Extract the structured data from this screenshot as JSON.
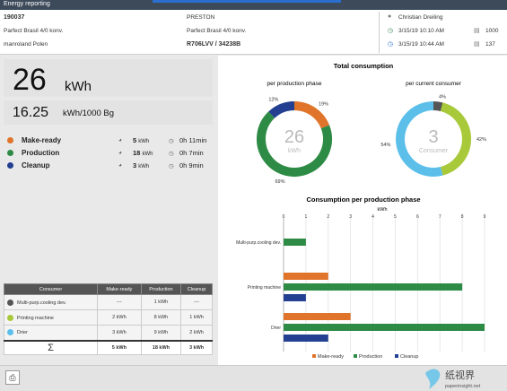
{
  "window": {
    "title": "Energy reporting"
  },
  "header": {
    "job_id": "190037",
    "customer": "PRESTON",
    "product_line1": "Parfect Brasil 4/0 konv.",
    "product_line2": "Parfect Brasil 4/0 konv.",
    "printer": "manroland Polen",
    "order": "R706LVV / 34238B",
    "operator": "Christian Dreiling",
    "start_time": "3/15/19 10:10 AM",
    "end_time": "3/15/19 10:44 AM",
    "count1": "1000",
    "count2": "137"
  },
  "totals": {
    "energy_value": "26",
    "energy_unit": "kWh",
    "specific_value": "16.25",
    "specific_unit": "kWh/1000 Bg"
  },
  "phases": [
    {
      "label": "Make-ready",
      "kwh": "5",
      "kwh_unit": "kWh",
      "time": "0h 11min",
      "color": "#e0742a"
    },
    {
      "label": "Production",
      "kwh": "18",
      "kwh_unit": "kWh",
      "time": "0h 7min",
      "color": "#2e8b45"
    },
    {
      "label": "Cleanup",
      "kwh": "3",
      "kwh_unit": "kWh",
      "time": "0h 9min",
      "color": "#233f92"
    }
  ],
  "consumer_table": {
    "headers": [
      "Consumer",
      "Make-ready",
      "Production",
      "Cleanup"
    ],
    "rows": [
      {
        "name": "Multi-purp.cooling dev.",
        "color": "#555555",
        "make_ready": "---",
        "production": "1 kWh",
        "cleanup": "---"
      },
      {
        "name": "Printing machine",
        "color": "#a8c93a",
        "make_ready": "2 kWh",
        "production": "8 kWh",
        "cleanup": "1 kWh"
      },
      {
        "name": "Drier",
        "color": "#5bbfea",
        "make_ready": "3 kWh",
        "production": "9 kWh",
        "cleanup": "2 kWh"
      }
    ],
    "total_symbol": "Σ",
    "totals": {
      "make_ready": "5 kWh",
      "production": "18 kWh",
      "cleanup": "3 kWh"
    }
  },
  "total_consumption": {
    "title": "Total consumption",
    "donut1": {
      "title": "per production phase",
      "center_value": "26",
      "center_unit": "kWh",
      "slices": [
        {
          "label": "19%",
          "value": 19,
          "color": "#e0742a"
        },
        {
          "label": "69%",
          "value": 69,
          "color": "#2e8b45"
        },
        {
          "label": "12%",
          "value": 12,
          "color": "#233f92"
        }
      ]
    },
    "donut2": {
      "title": "per current consumer",
      "center_value": "3",
      "center_unit": "Consumer",
      "slices": [
        {
          "label": "4%",
          "value": 4,
          "color": "#555555"
        },
        {
          "label": "42%",
          "value": 42,
          "color": "#a8c93a"
        },
        {
          "label": "54%",
          "value": 54,
          "color": "#5bbfea"
        }
      ]
    }
  },
  "chart_data": {
    "type": "bar",
    "title": "Consumption per production phase",
    "xlabel": "kWh",
    "xlim": [
      0,
      9
    ],
    "ticks": [
      "0",
      "1",
      "2",
      "3",
      "4",
      "5",
      "6",
      "7",
      "8",
      "9"
    ],
    "categories": [
      "Multi-purp.cooling dev.",
      "Printing machine",
      "Drier"
    ],
    "series": [
      {
        "name": "Make-ready",
        "color": "#e0742a",
        "values": [
          0,
          2,
          3
        ]
      },
      {
        "name": "Production",
        "color": "#2e8b45",
        "values": [
          1,
          8,
          9
        ]
      },
      {
        "name": "Cleanup",
        "color": "#233f92",
        "values": [
          0,
          1,
          2
        ]
      }
    ],
    "grid": true,
    "legend": "bottom"
  },
  "watermark": {
    "chinese": "纸视界",
    "url": "paperinsight.net"
  }
}
